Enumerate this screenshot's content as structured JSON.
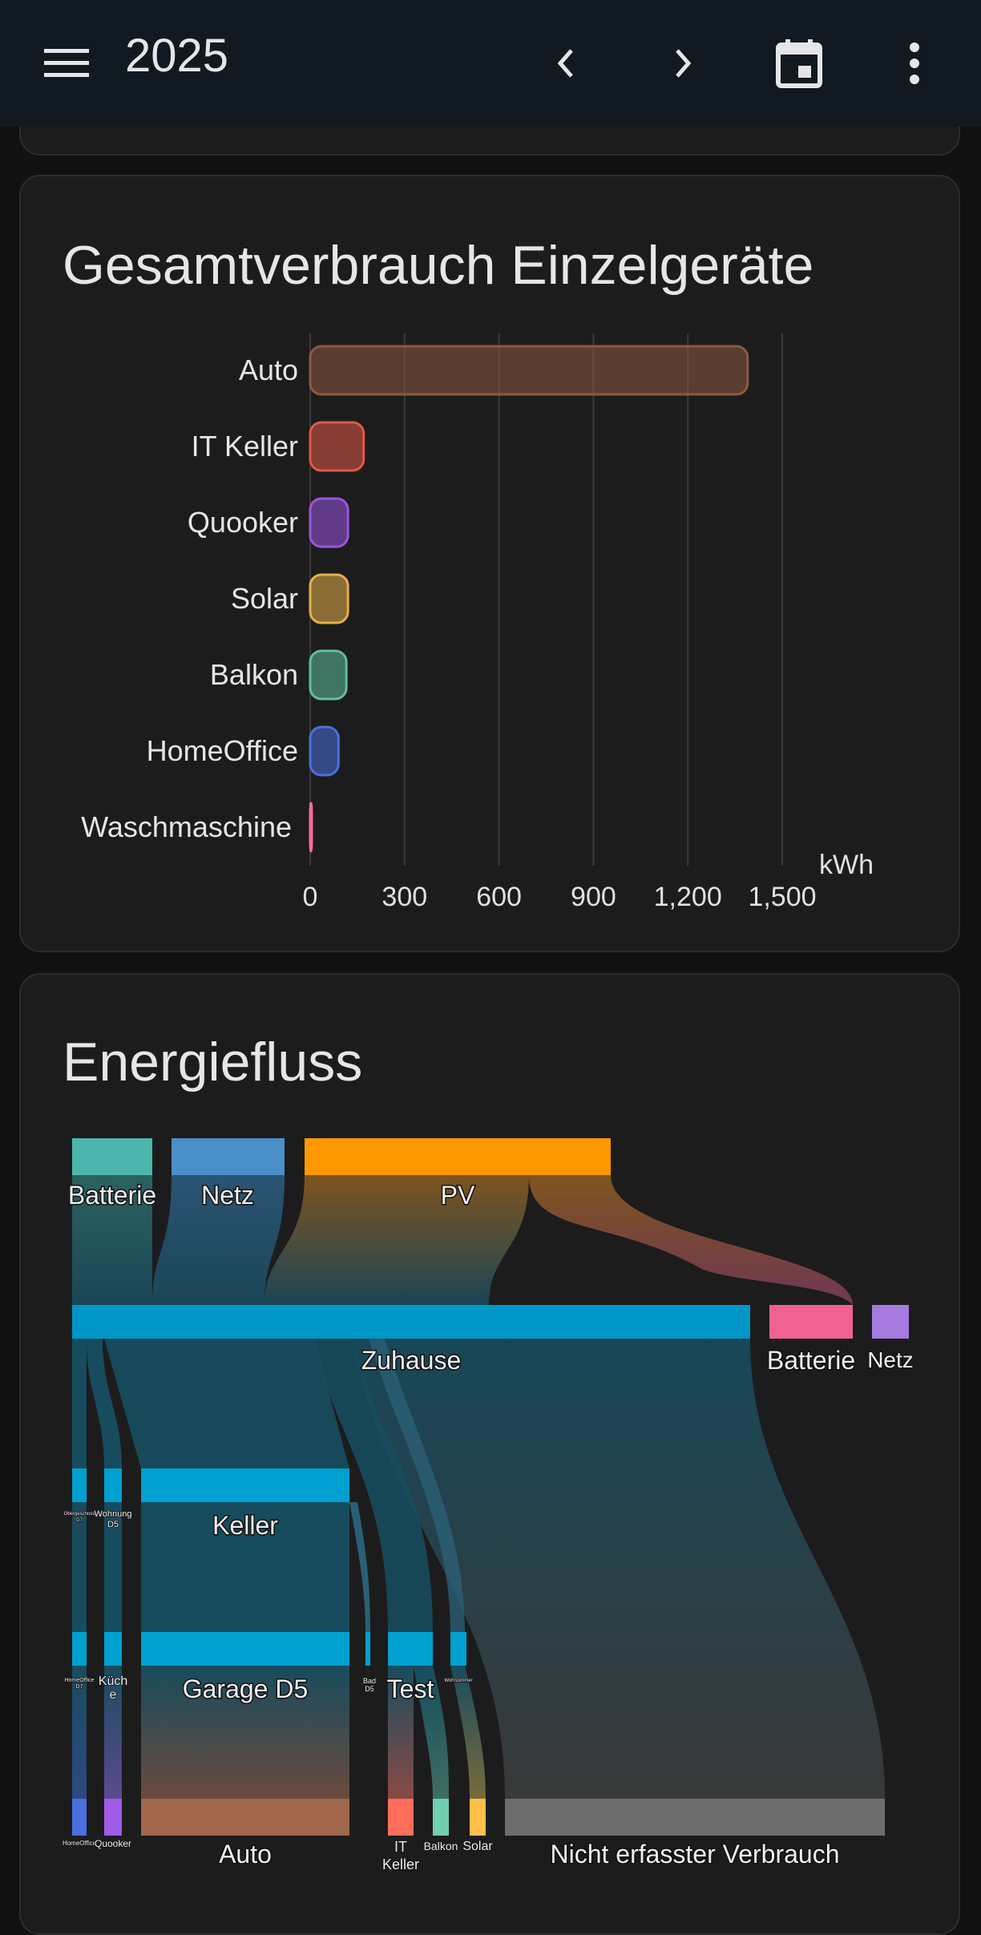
{
  "topbar": {
    "title": "2025",
    "icons": {
      "menu": "menu-icon",
      "prev": "chevron-left-icon",
      "next": "chevron-right-icon",
      "calendar": "calendar-icon",
      "more": "dots-vertical-icon"
    }
  },
  "bar_card": {
    "title": "Gesamtverbrauch Einzelgeräte",
    "unit": "kWh"
  },
  "chart_data": {
    "type": "bar",
    "orientation": "horizontal",
    "categories": [
      "Auto",
      "IT Keller",
      "Quooker",
      "Solar",
      "Balkon",
      "HomeOffice",
      "Waschmaschine"
    ],
    "values": [
      1390,
      170,
      120,
      120,
      115,
      90,
      5
    ],
    "colors": [
      "#8d5a43",
      "#e05a47",
      "#9a55e0",
      "#e6b04a",
      "#5fbf9f",
      "#4a6fe0",
      "#f06d9a"
    ],
    "xlim": [
      0,
      1500
    ],
    "xticks": [
      "0",
      "300",
      "600",
      "900",
      "1,200",
      "1,500"
    ],
    "xlabel": "kWh",
    "grid": true
  },
  "sankey_card": {
    "title": "Energiefluss",
    "sources": [
      "Batterie",
      "Netz",
      "PV"
    ],
    "hub": "Zuhause",
    "outputs": [
      "Batterie",
      "Netz"
    ],
    "level2": [
      "Keller",
      "Wohnung D5"
    ],
    "level2_small": [
      "Obergeschoss D7"
    ],
    "level3": [
      "Garage D5",
      "Test",
      "Küche",
      "Bad D5",
      "Wohnzimmer",
      "HomeOffice D7"
    ],
    "consumers": [
      "Auto",
      "IT Keller",
      "Balkon",
      "Solar",
      "HomeOffice",
      "Quooker",
      "Nicht erfasster Verbrauch"
    ]
  }
}
